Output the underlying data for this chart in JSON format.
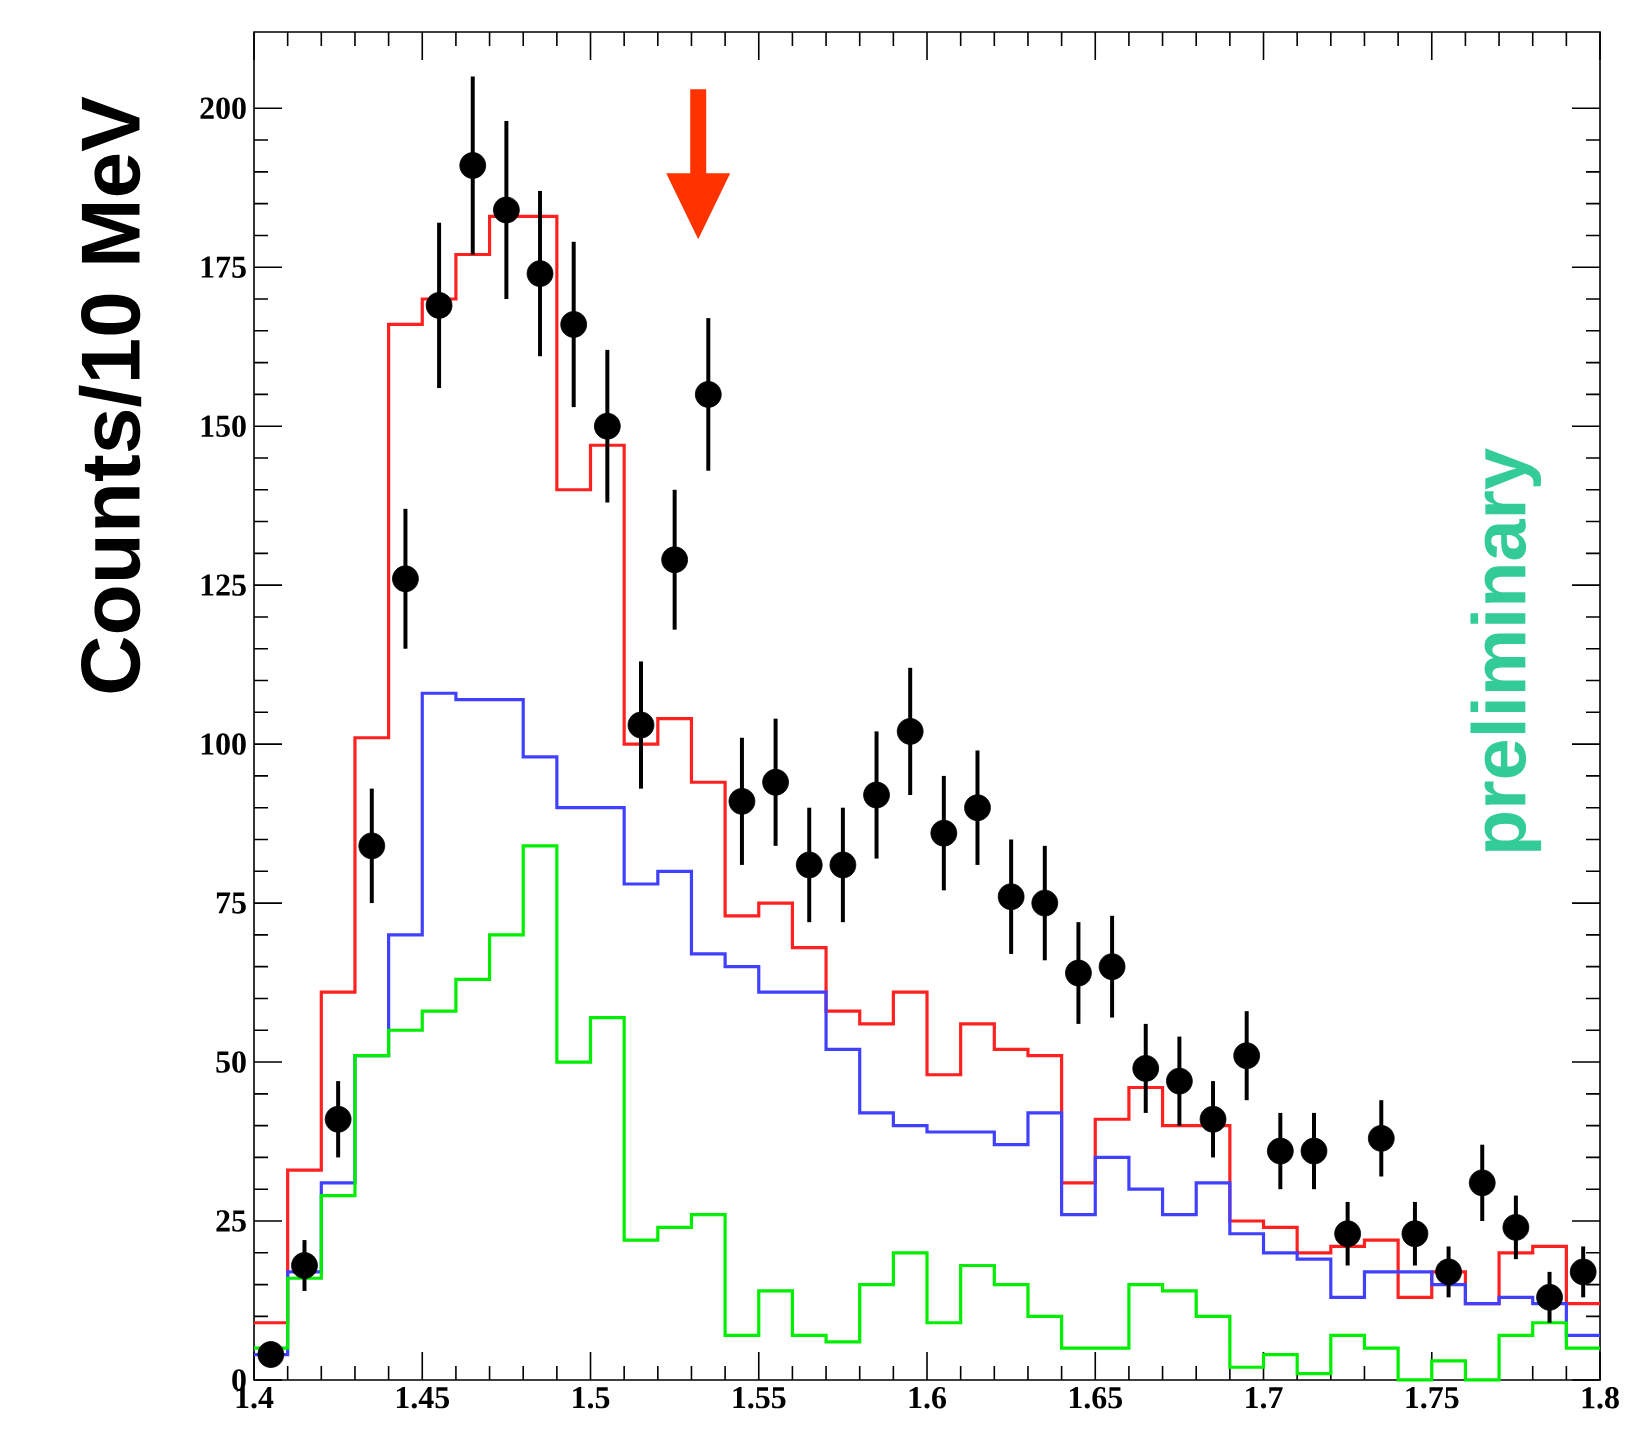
{
  "chart_data": {
    "type": "histogram",
    "ylabel": "Counts/10 MeV",
    "annotations": [
      "preliminary"
    ],
    "bins": [
      1.4,
      1.41,
      1.42,
      1.43,
      1.44,
      1.45,
      1.46,
      1.47,
      1.48,
      1.49,
      1.5,
      1.51,
      1.52,
      1.53,
      1.54,
      1.55,
      1.56,
      1.57,
      1.58,
      1.59,
      1.6,
      1.61,
      1.62,
      1.63,
      1.64,
      1.65,
      1.66,
      1.67,
      1.68,
      1.69,
      1.7,
      1.71,
      1.72,
      1.73,
      1.74,
      1.75,
      1.76,
      1.77,
      1.78,
      1.79,
      1.8
    ],
    "xlim": [
      1.4,
      1.8
    ],
    "ylim": [
      0,
      212
    ],
    "xticks": [
      1.4,
      1.45,
      1.5,
      1.55,
      1.6,
      1.65,
      1.7,
      1.75,
      1.8
    ],
    "yticks": [
      0,
      25,
      50,
      75,
      100,
      125,
      150,
      175,
      200
    ],
    "series": [
      {
        "color": "#ff2020",
        "values": [
          9,
          33,
          61,
          101,
          166,
          170,
          177,
          183,
          183,
          140,
          147,
          100,
          104,
          94,
          73,
          75,
          68,
          58,
          56,
          61,
          48,
          56,
          52,
          51,
          31,
          41,
          46,
          40,
          40,
          25,
          24,
          20,
          21,
          22,
          13,
          17,
          12,
          20,
          21,
          12
        ]
      },
      {
        "color": "#4040ff",
        "values": [
          4,
          17,
          31,
          51,
          70,
          108,
          107,
          107,
          98,
          90,
          90,
          78,
          80,
          67,
          65,
          61,
          61,
          52,
          42,
          40,
          39,
          39,
          37,
          42,
          26,
          35,
          30,
          26,
          31,
          23,
          20,
          19,
          13,
          17,
          17,
          15,
          12,
          13,
          12,
          7
        ]
      },
      {
        "color": "#00ee00",
        "values": [
          5,
          16,
          29,
          51,
          55,
          58,
          63,
          70,
          84,
          50,
          57,
          22,
          24,
          26,
          7,
          14,
          7,
          6,
          15,
          20,
          9,
          18,
          15,
          10,
          5,
          5,
          15,
          14,
          10,
          2,
          4,
          1,
          7,
          5,
          0,
          3,
          0,
          7,
          9,
          5
        ]
      },
      {
        "type": "scatter",
        "color": "#000000",
        "marker": "circle",
        "x": [
          1.405,
          1.415,
          1.425,
          1.435,
          1.445,
          1.455,
          1.465,
          1.475,
          1.485,
          1.495,
          1.505,
          1.515,
          1.525,
          1.535,
          1.545,
          1.555,
          1.565,
          1.575,
          1.585,
          1.595,
          1.605,
          1.615,
          1.625,
          1.635,
          1.645,
          1.655,
          1.665,
          1.675,
          1.685,
          1.695,
          1.705,
          1.715,
          1.725,
          1.735,
          1.745,
          1.755,
          1.765,
          1.775,
          1.785,
          1.795
        ],
        "values": [
          4,
          18,
          41,
          84,
          126,
          169,
          191,
          184,
          174,
          166,
          150,
          103,
          129,
          155,
          91,
          94,
          81,
          81,
          92,
          102,
          86,
          90,
          76,
          75,
          64,
          65,
          49,
          47,
          41,
          51,
          36,
          36,
          23,
          38,
          23,
          17,
          31,
          24,
          13,
          17
        ],
        "errors": [
          2,
          4,
          6,
          9,
          11,
          13,
          14,
          14,
          13,
          13,
          12,
          10,
          11,
          12,
          10,
          10,
          9,
          9,
          10,
          10,
          9,
          9,
          9,
          9,
          8,
          8,
          7,
          7,
          6,
          7,
          6,
          6,
          5,
          6,
          5,
          4,
          6,
          5,
          4,
          4
        ]
      }
    ]
  }
}
